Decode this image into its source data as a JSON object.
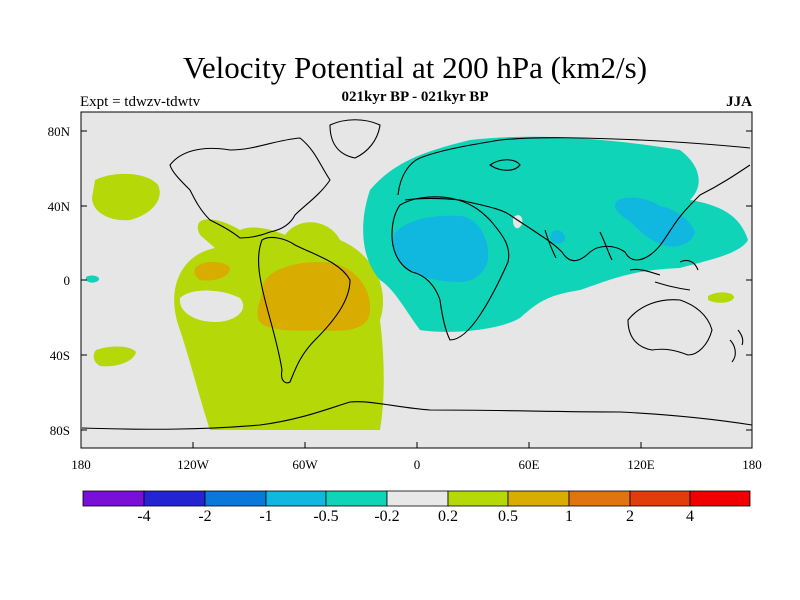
{
  "title": "Velocity Potential at 200 hPa (km2/s)",
  "subtitle": "021kyr BP - 021kyr BP",
  "experiment": "Expt = tdwzv-tdwtv",
  "season": "JJA",
  "lat_labels": [
    "80N",
    "40N",
    "0",
    "40S",
    "80S"
  ],
  "lon_labels": [
    "180",
    "120W",
    "60W",
    "0",
    "60E",
    "120E",
    "180"
  ],
  "colorbar": {
    "labels": [
      "-4",
      "-2",
      "-1",
      "-0.5",
      "-0.2",
      "0.2",
      "0.5",
      "1",
      "2",
      "4"
    ],
    "colors": [
      "#7a10d8",
      "#2424d0",
      "#0a78d8",
      "#10b8e0",
      "#10d4b8",
      "#e8e8e8",
      "#b4d808",
      "#d8ac00",
      "#e07410",
      "#e03c0c",
      "#f00000"
    ]
  },
  "colors": {
    "ocean": "#e6e6e6",
    "coast": "#000000"
  }
}
